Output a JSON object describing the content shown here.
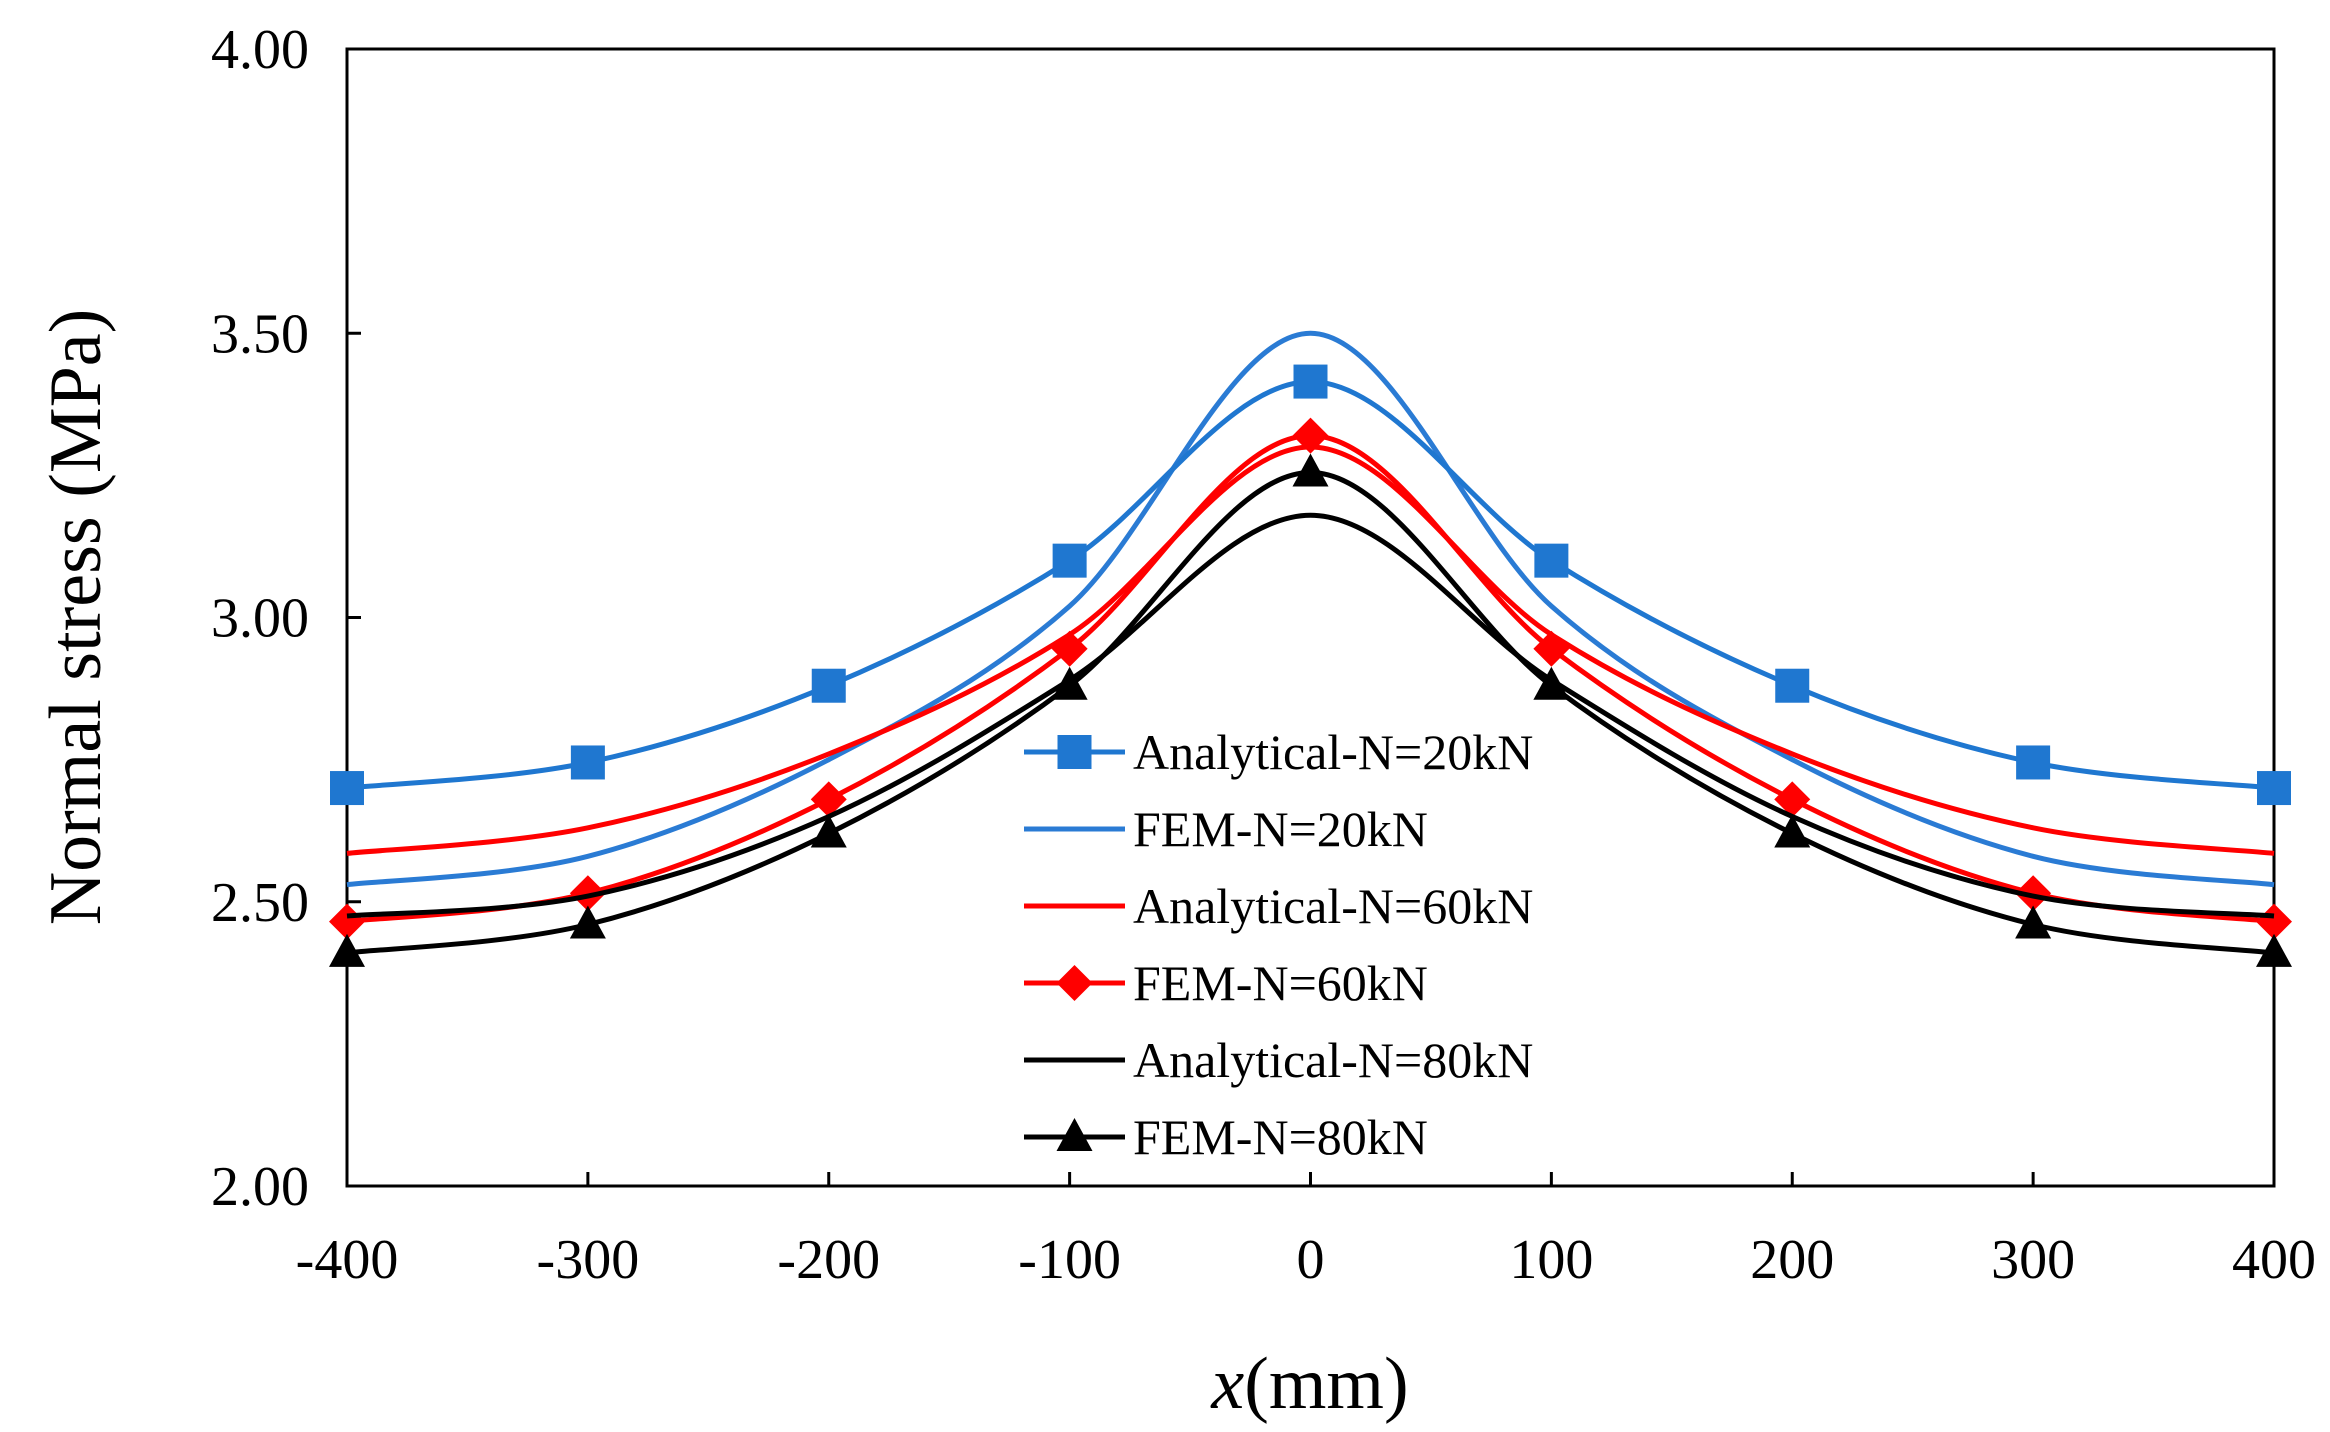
{
  "chart_data": {
    "type": "line",
    "title": "",
    "xlabel_italic": "x",
    "xlabel_rest": "(mm)",
    "ylabel": "Normal stress (MPa)",
    "xlim": [
      -400,
      400
    ],
    "ylim": [
      2.0,
      4.0
    ],
    "xticks": [
      -400,
      -300,
      -200,
      -100,
      0,
      100,
      200,
      300,
      400
    ],
    "yticks": [
      2.0,
      2.5,
      3.0,
      3.5,
      4.0
    ],
    "xtick_labels": [
      "-400",
      "-300",
      "-200",
      "-100",
      "0",
      "100",
      "200",
      "300",
      "400"
    ],
    "ytick_labels": [
      "2.00",
      "2.50",
      "3.00",
      "3.50",
      "4.00"
    ],
    "grid": false,
    "legend_position": "center",
    "series": [
      {
        "name": "Analytical-N=20kN",
        "color": "#1f77d0",
        "marker": "square",
        "x": [
          -400,
          -300,
          -200,
          -100,
          0,
          100,
          200,
          300,
          400
        ],
        "y": [
          2.7,
          2.745,
          2.88,
          3.1,
          3.415,
          3.1,
          2.88,
          2.745,
          2.7
        ]
      },
      {
        "name": "FEM-N=20kN",
        "color": "#2a7bd4",
        "marker": "none",
        "x": [
          -400,
          -300,
          -200,
          -100,
          0,
          100,
          200,
          300,
          400
        ],
        "y": [
          2.53,
          2.58,
          2.75,
          3.02,
          3.5,
          3.02,
          2.75,
          2.58,
          2.53
        ]
      },
      {
        "name": "Analytical-N=60kN",
        "color": "#ff0000",
        "marker": "none",
        "x": [
          -400,
          -300,
          -200,
          -100,
          0,
          100,
          200,
          300,
          400
        ],
        "y": [
          2.585,
          2.63,
          2.76,
          2.97,
          3.3,
          2.97,
          2.76,
          2.63,
          2.585
        ]
      },
      {
        "name": "FEM-N=60kN",
        "color": "#ff0000",
        "marker": "diamond",
        "x": [
          -400,
          -300,
          -200,
          -100,
          0,
          100,
          200,
          300,
          400
        ],
        "y": [
          2.465,
          2.515,
          2.68,
          2.945,
          3.32,
          2.945,
          2.68,
          2.515,
          2.465
        ]
      },
      {
        "name": "Analytical-N=80kN",
        "color": "#000000",
        "marker": "none",
        "x": [
          -400,
          -300,
          -200,
          -100,
          0,
          100,
          200,
          300,
          400
        ],
        "y": [
          2.475,
          2.51,
          2.65,
          2.89,
          3.18,
          2.89,
          2.65,
          2.51,
          2.475
        ]
      },
      {
        "name": "FEM-N=80kN",
        "color": "#000000",
        "marker": "triangle",
        "x": [
          -400,
          -300,
          -200,
          -100,
          0,
          100,
          200,
          300,
          400
        ],
        "y": [
          2.41,
          2.46,
          2.62,
          2.88,
          3.255,
          2.88,
          2.62,
          2.46,
          2.41
        ]
      }
    ]
  }
}
